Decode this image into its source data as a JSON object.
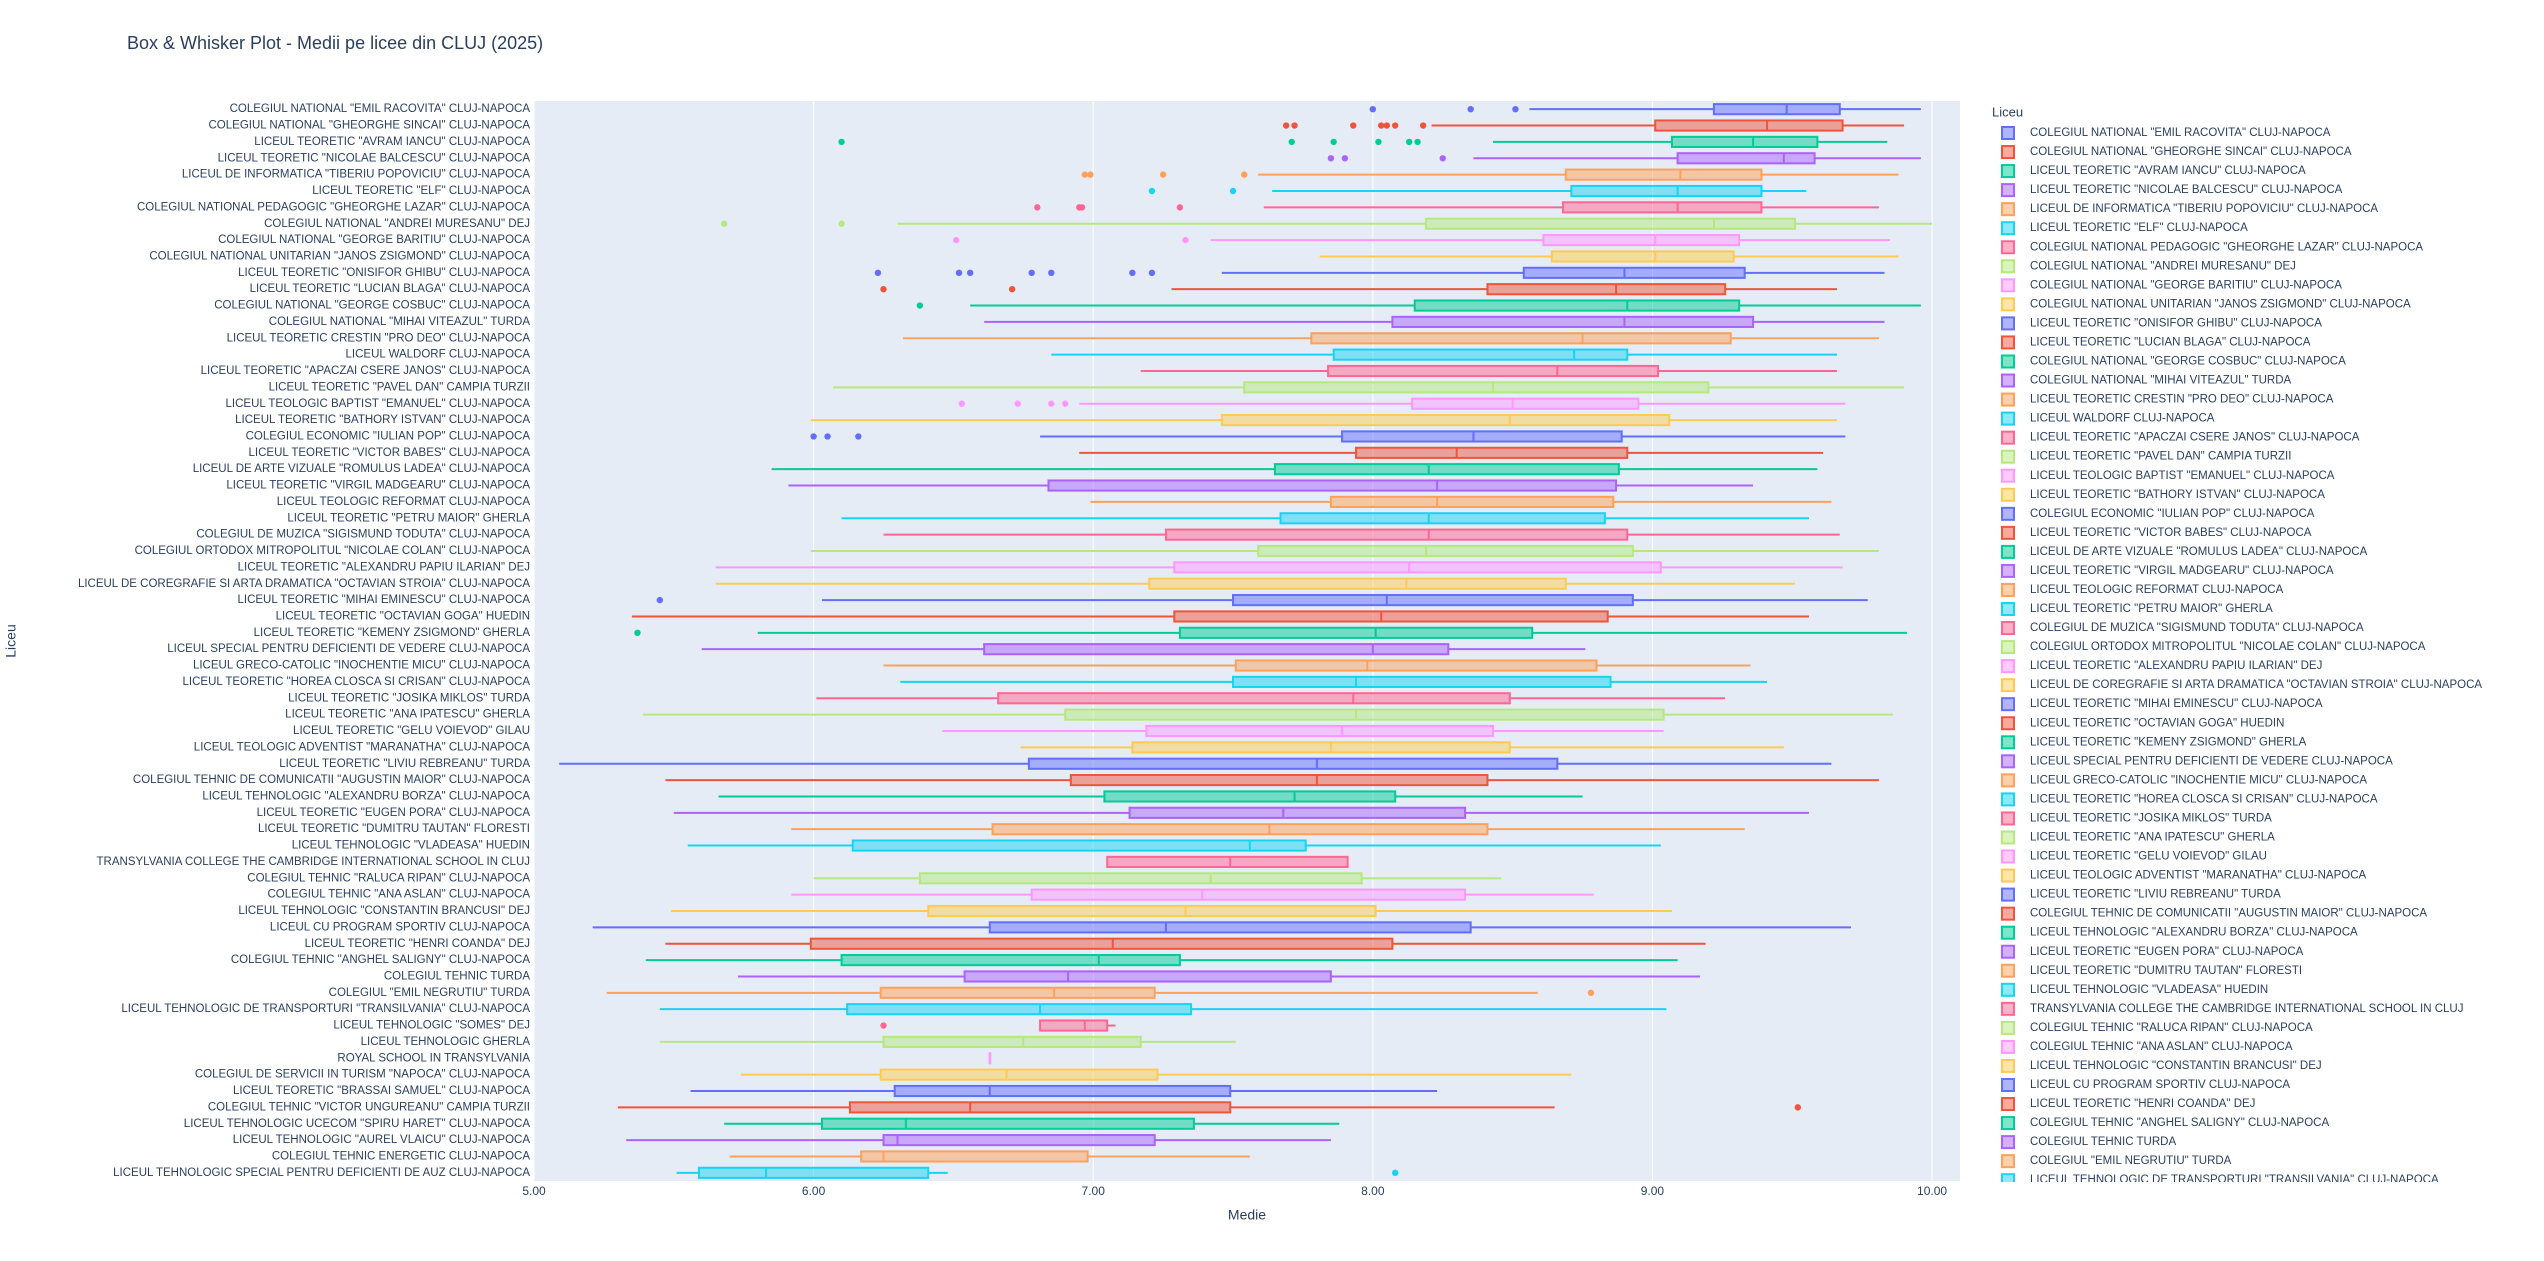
{
  "chart_data": {
    "type": "box",
    "orientation": "h",
    "title": "Box & Whisker Plot - Medii pe licee din CLUJ (2025)",
    "x_label": "Medie",
    "y_label": "Liceu",
    "legend_title": "Liceu",
    "legend": "right",
    "grid": true,
    "xlim": [
      5,
      10.1
    ],
    "xticks": [
      {
        "value": 5,
        "label": "5.00"
      },
      {
        "value": 6,
        "label": "6.00"
      },
      {
        "value": 7,
        "label": "7.00"
      },
      {
        "value": 8,
        "label": "8.00"
      },
      {
        "value": 9,
        "label": "9.00"
      },
      {
        "value": 10,
        "label": "10.00"
      }
    ],
    "series": [
      {
        "name": "COLEGIUL NATIONAL \"EMIL RACOVITA\" CLUJ-NAPOCA",
        "color": "#636efa",
        "lowerfence": 8.56,
        "q1": 9.22,
        "median": 9.48,
        "q3": 9.67,
        "upperfence": 9.96,
        "outliers": [
          8.0,
          8.35,
          8.51
        ]
      },
      {
        "name": "COLEGIUL NATIONAL \"GHEORGHE SINCAI\" CLUJ-NAPOCA",
        "color": "#ef553b",
        "lowerfence": 8.21,
        "q1": 9.01,
        "median": 9.41,
        "q3": 9.68,
        "upperfence": 9.9,
        "outliers": [
          7.69,
          7.72,
          7.93,
          8.03,
          8.05,
          8.08,
          8.18
        ]
      },
      {
        "name": "LICEUL TEORETIC \"AVRAM IANCU\" CLUJ-NAPOCA",
        "color": "#00cc96",
        "lowerfence": 8.43,
        "q1": 9.07,
        "median": 9.36,
        "q3": 9.59,
        "upperfence": 9.84,
        "outliers": [
          6.1,
          7.71,
          7.86,
          8.02,
          8.13,
          8.16
        ]
      },
      {
        "name": "LICEUL TEORETIC \"NICOLAE BALCESCU\" CLUJ-NAPOCA",
        "color": "#ab63fa",
        "lowerfence": 8.36,
        "q1": 9.09,
        "median": 9.47,
        "q3": 9.58,
        "upperfence": 9.96,
        "outliers": [
          7.85,
          7.9,
          8.25
        ]
      },
      {
        "name": "LICEUL DE INFORMATICA \"TIBERIU POPOVICIU\" CLUJ-NAPOCA",
        "color": "#ffa15a",
        "lowerfence": 7.59,
        "q1": 8.69,
        "median": 9.1,
        "q3": 9.39,
        "upperfence": 9.88,
        "outliers": [
          6.97,
          6.99,
          7.25,
          7.54
        ]
      },
      {
        "name": "LICEUL TEORETIC \"ELF\" CLUJ-NAPOCA",
        "color": "#19d3f3",
        "lowerfence": 7.64,
        "q1": 8.71,
        "median": 9.09,
        "q3": 9.39,
        "upperfence": 9.55,
        "outliers": [
          7.21,
          7.5
        ]
      },
      {
        "name": "COLEGIUL NATIONAL PEDAGOGIC \"GHEORGHE LAZAR\" CLUJ-NAPOCA",
        "color": "#ff6692",
        "lowerfence": 7.61,
        "q1": 8.68,
        "median": 9.09,
        "q3": 9.39,
        "upperfence": 9.81,
        "outliers": [
          6.8,
          6.95,
          6.96,
          7.31
        ]
      },
      {
        "name": "COLEGIUL NATIONAL \"ANDREI MURESANU\" DEJ",
        "color": "#b6e880",
        "lowerfence": 6.3,
        "q1": 8.19,
        "median": 9.22,
        "q3": 9.51,
        "upperfence": 10.0,
        "outliers": [
          5.68,
          6.1
        ]
      },
      {
        "name": "COLEGIUL NATIONAL \"GEORGE BARITIU\" CLUJ-NAPOCA",
        "color": "#ff97ff",
        "lowerfence": 7.42,
        "q1": 8.61,
        "median": 9.01,
        "q3": 9.31,
        "upperfence": 9.85,
        "outliers": [
          6.51,
          7.33
        ]
      },
      {
        "name": "COLEGIUL NATIONAL UNITARIAN \"JANOS ZSIGMOND\" CLUJ-NAPOCA",
        "color": "#fecb52",
        "lowerfence": 7.81,
        "q1": 8.64,
        "median": 9.01,
        "q3": 9.29,
        "upperfence": 9.88
      },
      {
        "name": "LICEUL TEORETIC \"ONISIFOR GHIBU\" CLUJ-NAPOCA",
        "color": "#636efa",
        "lowerfence": 7.46,
        "q1": 8.54,
        "median": 8.9,
        "q3": 9.33,
        "upperfence": 9.83,
        "outliers": [
          6.23,
          6.52,
          6.56,
          6.78,
          6.85,
          7.14,
          7.21
        ]
      },
      {
        "name": "LICEUL TEORETIC \"LUCIAN BLAGA\" CLUJ-NAPOCA",
        "color": "#ef553b",
        "lowerfence": 7.28,
        "q1": 8.41,
        "median": 8.87,
        "q3": 9.26,
        "upperfence": 9.66,
        "outliers": [
          6.25,
          6.71
        ]
      },
      {
        "name": "COLEGIUL NATIONAL \"GEORGE COSBUC\" CLUJ-NAPOCA",
        "color": "#00cc96",
        "lowerfence": 6.56,
        "q1": 8.15,
        "median": 8.91,
        "q3": 9.31,
        "upperfence": 9.96,
        "outliers": [
          6.38
        ]
      },
      {
        "name": "COLEGIUL NATIONAL \"MIHAI VITEAZUL\" TURDA",
        "color": "#ab63fa",
        "lowerfence": 6.61,
        "q1": 8.07,
        "median": 8.9,
        "q3": 9.36,
        "upperfence": 9.83
      },
      {
        "name": "LICEUL TEORETIC CRESTIN \"PRO DEO\" CLUJ-NAPOCA",
        "color": "#ffa15a",
        "lowerfence": 6.32,
        "q1": 7.78,
        "median": 8.75,
        "q3": 9.28,
        "upperfence": 9.81
      },
      {
        "name": "LICEUL WALDORF CLUJ-NAPOCA",
        "color": "#19d3f3",
        "lowerfence": 6.85,
        "q1": 7.86,
        "median": 8.72,
        "q3": 8.91,
        "upperfence": 9.66
      },
      {
        "name": "LICEUL TEORETIC \"APACZAI CSERE JANOS\" CLUJ-NAPOCA",
        "color": "#ff6692",
        "lowerfence": 7.17,
        "q1": 7.84,
        "median": 8.66,
        "q3": 9.02,
        "upperfence": 9.66
      },
      {
        "name": "LICEUL TEORETIC \"PAVEL DAN\" CAMPIA TURZII",
        "color": "#b6e880",
        "lowerfence": 6.07,
        "q1": 7.54,
        "median": 8.43,
        "q3": 9.2,
        "upperfence": 9.9
      },
      {
        "name": "LICEUL TEOLOGIC BAPTIST \"EMANUEL\" CLUJ-NAPOCA",
        "color": "#ff97ff",
        "lowerfence": 6.95,
        "q1": 8.14,
        "median": 8.5,
        "q3": 8.95,
        "upperfence": 9.69,
        "outliers": [
          6.53,
          6.73,
          6.85,
          6.9
        ]
      },
      {
        "name": "LICEUL TEORETIC \"BATHORY ISTVAN\" CLUJ-NAPOCA",
        "color": "#fecb52",
        "lowerfence": 5.99,
        "q1": 7.46,
        "median": 8.49,
        "q3": 9.06,
        "upperfence": 9.66
      },
      {
        "name": "COLEGIUL ECONOMIC \"IULIAN POP\" CLUJ-NAPOCA",
        "color": "#636efa",
        "lowerfence": 6.81,
        "q1": 7.89,
        "median": 8.36,
        "q3": 8.89,
        "upperfence": 9.69,
        "outliers": [
          6.0,
          6.05,
          6.16
        ]
      },
      {
        "name": "LICEUL TEORETIC \"VICTOR BABES\" CLUJ-NAPOCA",
        "color": "#ef553b",
        "lowerfence": 6.95,
        "q1": 7.94,
        "median": 8.3,
        "q3": 8.91,
        "upperfence": 9.61
      },
      {
        "name": "LICEUL DE ARTE VIZUALE \"ROMULUS LADEA\" CLUJ-NAPOCA",
        "color": "#00cc96",
        "lowerfence": 5.85,
        "q1": 7.65,
        "median": 8.2,
        "q3": 8.88,
        "upperfence": 9.59
      },
      {
        "name": "LICEUL TEORETIC \"VIRGIL MADGEARU\" CLUJ-NAPOCA",
        "color": "#ab63fa",
        "lowerfence": 5.91,
        "q1": 6.84,
        "median": 8.23,
        "q3": 8.87,
        "upperfence": 9.36
      },
      {
        "name": "LICEUL TEOLOGIC REFORMAT CLUJ-NAPOCA",
        "color": "#ffa15a",
        "lowerfence": 6.99,
        "q1": 7.85,
        "median": 8.23,
        "q3": 8.86,
        "upperfence": 9.64
      },
      {
        "name": "LICEUL TEORETIC \"PETRU MAIOR\" GHERLA",
        "color": "#19d3f3",
        "lowerfence": 6.1,
        "q1": 7.67,
        "median": 8.2,
        "q3": 8.83,
        "upperfence": 9.56
      },
      {
        "name": "COLEGIUL DE MUZICA \"SIGISMUND TODUTA\" CLUJ-NAPOCA",
        "color": "#ff6692",
        "lowerfence": 6.25,
        "q1": 7.26,
        "median": 8.2,
        "q3": 8.91,
        "upperfence": 9.67
      },
      {
        "name": "COLEGIUL ORTODOX MITROPOLITUL \"NICOLAE COLAN\" CLUJ-NAPOCA",
        "color": "#b6e880",
        "lowerfence": 5.99,
        "q1": 7.59,
        "median": 8.19,
        "q3": 8.93,
        "upperfence": 9.81
      },
      {
        "name": "LICEUL TEORETIC \"ALEXANDRU PAPIU ILARIAN\" DEJ",
        "color": "#ff97ff",
        "lowerfence": 5.65,
        "q1": 7.29,
        "median": 8.13,
        "q3": 9.03,
        "upperfence": 9.68
      },
      {
        "name": "LICEUL DE COREGRAFIE SI ARTA DRAMATICA \"OCTAVIAN STROIA\" CLUJ-NAPOCA",
        "color": "#fecb52",
        "lowerfence": 5.65,
        "q1": 7.2,
        "median": 8.12,
        "q3": 8.69,
        "upperfence": 9.51
      },
      {
        "name": "LICEUL TEORETIC \"MIHAI EMINESCU\" CLUJ-NAPOCA",
        "color": "#636efa",
        "lowerfence": 6.03,
        "q1": 7.5,
        "median": 8.05,
        "q3": 8.93,
        "upperfence": 9.77,
        "outliers": [
          5.45
        ]
      },
      {
        "name": "LICEUL TEORETIC \"OCTAVIAN GOGA\" HUEDIN",
        "color": "#ef553b",
        "lowerfence": 5.35,
        "q1": 7.29,
        "median": 8.03,
        "q3": 8.84,
        "upperfence": 9.56
      },
      {
        "name": "LICEUL TEORETIC \"KEMENY ZSIGMOND\" GHERLA",
        "color": "#00cc96",
        "lowerfence": 5.8,
        "q1": 7.31,
        "median": 8.01,
        "q3": 8.57,
        "upperfence": 9.91,
        "outliers": [
          5.37
        ]
      },
      {
        "name": "LICEUL SPECIAL PENTRU DEFICIENTI DE VEDERE CLUJ-NAPOCA",
        "color": "#ab63fa",
        "lowerfence": 5.6,
        "q1": 6.61,
        "median": 8.0,
        "q3": 8.27,
        "upperfence": 8.76
      },
      {
        "name": "LICEUL GRECO-CATOLIC \"INOCHENTIE MICU\" CLUJ-NAPOCA",
        "color": "#ffa15a",
        "lowerfence": 6.25,
        "q1": 7.51,
        "median": 7.98,
        "q3": 8.8,
        "upperfence": 9.35
      },
      {
        "name": "LICEUL TEORETIC \"HOREA CLOSCA SI CRISAN\" CLUJ-NAPOCA",
        "color": "#19d3f3",
        "lowerfence": 6.31,
        "q1": 7.5,
        "median": 7.94,
        "q3": 8.85,
        "upperfence": 9.41
      },
      {
        "name": "LICEUL TEORETIC \"JOSIKA MIKLOS\" TURDA",
        "color": "#ff6692",
        "lowerfence": 6.01,
        "q1": 6.66,
        "median": 7.93,
        "q3": 8.49,
        "upperfence": 9.26
      },
      {
        "name": "LICEUL TEORETIC \"ANA IPATESCU\" GHERLA",
        "color": "#b6e880",
        "lowerfence": 5.39,
        "q1": 6.9,
        "median": 7.94,
        "q3": 9.04,
        "upperfence": 9.86
      },
      {
        "name": "LICEUL TEORETIC \"GELU VOIEVOD\" GILAU",
        "color": "#ff97ff",
        "lowerfence": 6.46,
        "q1": 7.19,
        "median": 7.89,
        "q3": 8.43,
        "upperfence": 9.04
      },
      {
        "name": "LICEUL TEOLOGIC ADVENTIST \"MARANATHA\" CLUJ-NAPOCA",
        "color": "#fecb52",
        "lowerfence": 6.74,
        "q1": 7.14,
        "median": 7.85,
        "q3": 8.49,
        "upperfence": 9.47
      },
      {
        "name": "LICEUL TEORETIC \"LIVIU REBREANU\" TURDA",
        "color": "#636efa",
        "lowerfence": 5.09,
        "q1": 6.77,
        "median": 7.8,
        "q3": 8.66,
        "upperfence": 9.64
      },
      {
        "name": "COLEGIUL TEHNIC DE COMUNICATII \"AUGUSTIN MAIOR\" CLUJ-NAPOCA",
        "color": "#ef553b",
        "lowerfence": 5.47,
        "q1": 6.92,
        "median": 7.8,
        "q3": 8.41,
        "upperfence": 9.81
      },
      {
        "name": "LICEUL TEHNOLOGIC \"ALEXANDRU BORZA\" CLUJ-NAPOCA",
        "color": "#00cc96",
        "lowerfence": 5.66,
        "q1": 7.04,
        "median": 7.72,
        "q3": 8.08,
        "upperfence": 8.75
      },
      {
        "name": "LICEUL TEORETIC \"EUGEN PORA\" CLUJ-NAPOCA",
        "color": "#ab63fa",
        "lowerfence": 5.5,
        "q1": 7.13,
        "median": 7.68,
        "q3": 8.33,
        "upperfence": 9.56
      },
      {
        "name": "LICEUL TEORETIC \"DUMITRU TAUTAN\" FLORESTI",
        "color": "#ffa15a",
        "lowerfence": 5.92,
        "q1": 6.64,
        "median": 7.63,
        "q3": 8.41,
        "upperfence": 9.33
      },
      {
        "name": "LICEUL TEHNOLOGIC \"VLADEASA\" HUEDIN",
        "color": "#19d3f3",
        "lowerfence": 5.55,
        "q1": 6.14,
        "median": 7.56,
        "q3": 7.76,
        "upperfence": 9.03
      },
      {
        "name": "TRANSYLVANIA COLLEGE THE CAMBRIDGE INTERNATIONAL SCHOOL IN CLUJ",
        "color": "#ff6692",
        "lowerfence": 7.05,
        "q1": 7.05,
        "median": 7.49,
        "q3": 7.91,
        "upperfence": 7.91
      },
      {
        "name": "COLEGIUL TEHNIC \"RALUCA RIPAN\" CLUJ-NAPOCA",
        "color": "#b6e880",
        "lowerfence": 6.0,
        "q1": 6.38,
        "median": 7.42,
        "q3": 7.96,
        "upperfence": 8.46
      },
      {
        "name": "COLEGIUL TEHNIC \"ANA ASLAN\" CLUJ-NAPOCA",
        "color": "#ff97ff",
        "lowerfence": 5.92,
        "q1": 6.78,
        "median": 7.39,
        "q3": 8.33,
        "upperfence": 8.79
      },
      {
        "name": "LICEUL TEHNOLOGIC \"CONSTANTIN BRANCUSI\" DEJ",
        "color": "#fecb52",
        "lowerfence": 5.49,
        "q1": 6.41,
        "median": 7.33,
        "q3": 8.01,
        "upperfence": 9.07
      },
      {
        "name": "LICEUL CU PROGRAM SPORTIV CLUJ-NAPOCA",
        "color": "#636efa",
        "lowerfence": 5.21,
        "q1": 6.63,
        "median": 7.26,
        "q3": 8.35,
        "upperfence": 9.71
      },
      {
        "name": "LICEUL TEORETIC \"HENRI COANDA\" DEJ",
        "color": "#ef553b",
        "lowerfence": 5.47,
        "q1": 5.99,
        "median": 7.07,
        "q3": 8.07,
        "upperfence": 9.19
      },
      {
        "name": "COLEGIUL TEHNIC \"ANGHEL SALIGNY\" CLUJ-NAPOCA",
        "color": "#00cc96",
        "lowerfence": 5.4,
        "q1": 6.1,
        "median": 7.02,
        "q3": 7.31,
        "upperfence": 9.09
      },
      {
        "name": "COLEGIUL TEHNIC TURDA",
        "color": "#ab63fa",
        "lowerfence": 5.73,
        "q1": 6.54,
        "median": 6.91,
        "q3": 7.85,
        "upperfence": 9.17
      },
      {
        "name": "COLEGIUL \"EMIL NEGRUTIU\" TURDA",
        "color": "#ffa15a",
        "lowerfence": 5.26,
        "q1": 6.24,
        "median": 6.86,
        "q3": 7.22,
        "upperfence": 8.59,
        "outliers": [
          8.78
        ]
      },
      {
        "name": "LICEUL TEHNOLOGIC DE TRANSPORTURI \"TRANSILVANIA\" CLUJ-NAPOCA",
        "color": "#19d3f3",
        "lowerfence": 5.45,
        "q1": 6.12,
        "median": 6.81,
        "q3": 7.35,
        "upperfence": 9.05
      },
      {
        "name": "LICEUL TEHNOLOGIC \"SOMES\" DEJ",
        "color": "#ff6692",
        "lowerfence": 6.81,
        "q1": 6.81,
        "median": 6.97,
        "q3": 7.05,
        "upperfence": 7.08,
        "outliers": [
          6.25
        ]
      },
      {
        "name": "LICEUL TEHNOLOGIC GHERLA",
        "color": "#b6e880",
        "lowerfence": 5.45,
        "q1": 6.25,
        "median": 6.75,
        "q3": 7.17,
        "upperfence": 7.51
      },
      {
        "name": "ROYAL SCHOOL IN TRANSYLVANIA",
        "color": "#ff97ff",
        "lowerfence": 6.63,
        "q1": 6.63,
        "median": 6.63,
        "q3": 6.63,
        "upperfence": 6.63
      },
      {
        "name": "COLEGIUL DE SERVICII IN TURISM \"NAPOCA\" CLUJ-NAPOCA",
        "color": "#fecb52",
        "lowerfence": 5.74,
        "q1": 6.24,
        "median": 6.69,
        "q3": 7.23,
        "upperfence": 8.71
      },
      {
        "name": "LICEUL TEORETIC \"BRASSAI SAMUEL\" CLUJ-NAPOCA",
        "color": "#636efa",
        "lowerfence": 5.56,
        "q1": 6.29,
        "median": 6.63,
        "q3": 7.49,
        "upperfence": 8.23
      },
      {
        "name": "COLEGIUL TEHNIC \"VICTOR UNGUREANU\" CAMPIA TURZII",
        "color": "#ef553b",
        "lowerfence": 5.3,
        "q1": 6.13,
        "median": 6.56,
        "q3": 7.49,
        "upperfence": 8.65,
        "outliers": [
          9.52
        ]
      },
      {
        "name": "LICEUL TEHNOLOGIC UCECOM \"SPIRU HARET\" CLUJ-NAPOCA",
        "color": "#00cc96",
        "lowerfence": 5.68,
        "q1": 6.03,
        "median": 6.33,
        "q3": 7.36,
        "upperfence": 7.88
      },
      {
        "name": "LICEUL TEHNOLOGIC \"AUREL VLAICU\" CLUJ-NAPOCA",
        "color": "#ab63fa",
        "lowerfence": 5.33,
        "q1": 6.25,
        "median": 6.3,
        "q3": 7.22,
        "upperfence": 7.85
      },
      {
        "name": "COLEGIUL TEHNIC ENERGETIC CLUJ-NAPOCA",
        "color": "#ffa15a",
        "lowerfence": 5.7,
        "q1": 6.17,
        "median": 6.25,
        "q3": 6.98,
        "upperfence": 7.56
      },
      {
        "name": "LICEUL TEHNOLOGIC SPECIAL PENTRU DEFICIENTI DE AUZ CLUJ-NAPOCA",
        "color": "#19d3f3",
        "lowerfence": 5.51,
        "q1": 5.59,
        "median": 5.83,
        "q3": 6.41,
        "upperfence": 6.48,
        "outliers": [
          8.08
        ]
      }
    ]
  }
}
